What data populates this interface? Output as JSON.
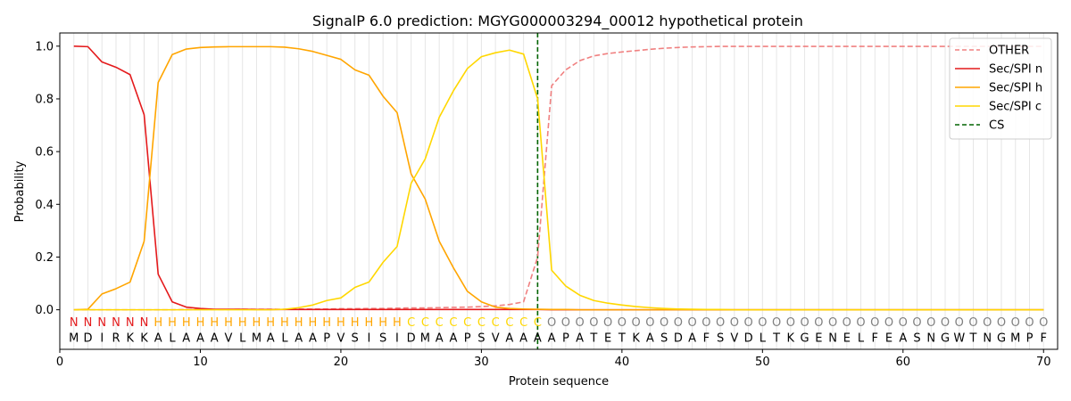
{
  "chart_data": {
    "type": "line",
    "title": "SignalP 6.0 prediction: MGYG000003294_00012 hypothetical protein",
    "xlabel": "Protein sequence",
    "ylabel": "Probability",
    "xlim": [
      0,
      71
    ],
    "ylim": [
      -0.15,
      1.05
    ],
    "xticks": [
      0,
      10,
      20,
      30,
      40,
      50,
      60,
      70
    ],
    "yticks": [
      0.0,
      0.2,
      0.4,
      0.6,
      0.8,
      1.0
    ],
    "grid": "vertical lines at each residue",
    "legend_position": "top-right",
    "sequence": [
      "M",
      "D",
      "I",
      "R",
      "K",
      "K",
      "A",
      "L",
      "A",
      "A",
      "A",
      "V",
      "L",
      "M",
      "A",
      "L",
      "A",
      "A",
      "P",
      "V",
      "S",
      "I",
      "S",
      "I",
      "D",
      "M",
      "A",
      "A",
      "P",
      "S",
      "V",
      "A",
      "A",
      "A",
      "A",
      "P",
      "A",
      "T",
      "E",
      "T",
      "K",
      "A",
      "S",
      "D",
      "A",
      "F",
      "S",
      "V",
      "D",
      "L",
      "T",
      "K",
      "G",
      "E",
      "N",
      "E",
      "L",
      "F",
      "E",
      "A",
      "S",
      "N",
      "G",
      "W",
      "T",
      "N",
      "G",
      "M",
      "P",
      "F"
    ],
    "labels": [
      "N",
      "N",
      "N",
      "N",
      "N",
      "N",
      "H",
      "H",
      "H",
      "H",
      "H",
      "H",
      "H",
      "H",
      "H",
      "H",
      "H",
      "H",
      "H",
      "H",
      "H",
      "H",
      "H",
      "H",
      "C",
      "C",
      "C",
      "C",
      "C",
      "C",
      "C",
      "C",
      "C",
      "C",
      "O",
      "O",
      "O",
      "O",
      "O",
      "O",
      "O",
      "O",
      "O",
      "O",
      "O",
      "O",
      "O",
      "O",
      "O",
      "O",
      "O",
      "O",
      "O",
      "O",
      "O",
      "O",
      "O",
      "O",
      "O",
      "O",
      "O",
      "O",
      "O",
      "O",
      "O",
      "O",
      "O",
      "O",
      "O",
      "O"
    ],
    "label_colors": {
      "N": "#e41a1c",
      "H": "#ffa500",
      "C": "#ffd700",
      "O": "#808080"
    },
    "cleavage_site": 34,
    "series": [
      {
        "name": "OTHER",
        "color": "#f08080",
        "style": "dashed",
        "values": [
          0.0,
          0.0,
          0.0,
          0.0,
          0.0,
          0.0,
          0.0,
          0.0,
          0.001,
          0.001,
          0.001,
          0.001,
          0.002,
          0.002,
          0.002,
          0.002,
          0.003,
          0.003,
          0.003,
          0.004,
          0.004,
          0.005,
          0.005,
          0.006,
          0.007,
          0.007,
          0.008,
          0.009,
          0.01,
          0.012,
          0.015,
          0.02,
          0.03,
          0.2,
          0.85,
          0.91,
          0.945,
          0.963,
          0.972,
          0.978,
          0.983,
          0.988,
          0.992,
          0.995,
          0.997,
          0.998,
          0.999,
          0.999,
          0.999,
          0.999,
          0.999,
          0.999,
          0.999,
          0.999,
          0.999,
          0.999,
          0.999,
          0.999,
          0.999,
          0.999,
          0.999,
          0.999,
          0.999,
          0.999,
          0.999,
          0.999,
          0.999,
          0.999,
          0.999,
          0.999
        ]
      },
      {
        "name": "Sec/SPI n",
        "color": "#e41a1c",
        "style": "solid",
        "values": [
          1.0,
          0.998,
          0.94,
          0.92,
          0.892,
          0.74,
          0.135,
          0.03,
          0.01,
          0.005,
          0.002,
          0.002,
          0.002,
          0.001,
          0.001,
          0.001,
          0.001,
          0.001,
          0.001,
          0.001,
          0.001,
          0.001,
          0.001,
          0.001,
          0.001,
          0.001,
          0.001,
          0.001,
          0.001,
          0.001,
          0.001,
          0.001,
          0.001,
          0.001,
          0.0,
          0.0,
          0.0,
          0.0,
          0.0,
          0.0,
          0.0,
          0.0,
          0.0,
          0.0,
          0.0,
          0.0,
          0.0,
          0.0,
          0.0,
          0.0,
          0.0,
          0.0,
          0.0,
          0.0,
          0.0,
          0.0,
          0.0,
          0.0,
          0.0,
          0.0,
          0.0,
          0.0,
          0.0,
          0.0,
          0.0,
          0.0,
          0.0,
          0.0,
          0.0,
          0.0
        ]
      },
      {
        "name": "Sec/SPI h",
        "color": "#ffa500",
        "style": "solid",
        "values": [
          0.0,
          0.002,
          0.06,
          0.08,
          0.105,
          0.26,
          0.862,
          0.968,
          0.989,
          0.995,
          0.997,
          0.998,
          0.998,
          0.998,
          0.998,
          0.996,
          0.99,
          0.98,
          0.965,
          0.95,
          0.91,
          0.89,
          0.81,
          0.748,
          0.515,
          0.42,
          0.26,
          0.16,
          0.07,
          0.03,
          0.01,
          0.005,
          0.003,
          0.002,
          0.001,
          0.001,
          0.0,
          0.0,
          0.0,
          0.0,
          0.0,
          0.0,
          0.0,
          0.0,
          0.0,
          0.0,
          0.0,
          0.0,
          0.0,
          0.0,
          0.0,
          0.0,
          0.0,
          0.0,
          0.0,
          0.0,
          0.0,
          0.0,
          0.0,
          0.0,
          0.0,
          0.0,
          0.0,
          0.0,
          0.0,
          0.0,
          0.0,
          0.0,
          0.0,
          0.0
        ]
      },
      {
        "name": "Sec/SPI c",
        "color": "#ffd700",
        "style": "solid",
        "values": [
          0.0,
          0.0,
          0.0,
          0.0,
          0.0,
          0.0,
          0.0,
          0.0,
          0.0,
          0.0,
          0.0,
          0.0,
          0.0,
          0.0,
          0.0,
          0.002,
          0.008,
          0.018,
          0.035,
          0.045,
          0.085,
          0.105,
          0.18,
          0.24,
          0.48,
          0.572,
          0.73,
          0.83,
          0.915,
          0.96,
          0.975,
          0.985,
          0.97,
          0.8,
          0.15,
          0.09,
          0.055,
          0.035,
          0.025,
          0.018,
          0.012,
          0.008,
          0.005,
          0.003,
          0.002,
          0.001,
          0.001,
          0.0,
          0.0,
          0.0,
          0.0,
          0.0,
          0.0,
          0.0,
          0.0,
          0.0,
          0.0,
          0.0,
          0.0,
          0.0,
          0.0,
          0.0,
          0.0,
          0.0,
          0.0,
          0.0,
          0.0,
          0.0,
          0.0,
          0.0
        ]
      }
    ],
    "legend": [
      {
        "name": "OTHER",
        "color": "#f08080",
        "style": "dashed"
      },
      {
        "name": "Sec/SPI n",
        "color": "#e41a1c",
        "style": "solid"
      },
      {
        "name": "Sec/SPI h",
        "color": "#ffa500",
        "style": "solid"
      },
      {
        "name": "Sec/SPI c",
        "color": "#ffd700",
        "style": "solid"
      },
      {
        "name": "CS",
        "color": "#006400",
        "style": "dashed"
      }
    ]
  }
}
